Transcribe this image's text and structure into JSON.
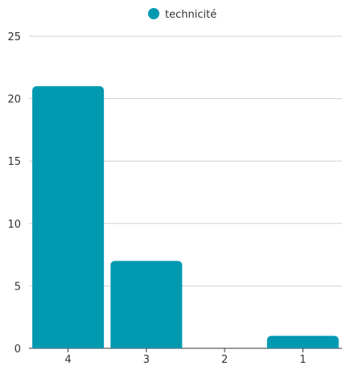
{
  "chart_data": {
    "type": "bar",
    "categories": [
      "4",
      "3",
      "2",
      "1"
    ],
    "series": [
      {
        "name": "technicité",
        "values": [
          21,
          7,
          0,
          1
        ],
        "color": "#0099b0"
      }
    ],
    "ylim": [
      0,
      25
    ],
    "yticks": [
      "0",
      "5",
      "10",
      "15",
      "20",
      "25"
    ],
    "ytick_values": [
      0,
      5,
      10,
      15,
      20,
      25
    ],
    "grid": true,
    "legend_position": "top-center"
  }
}
